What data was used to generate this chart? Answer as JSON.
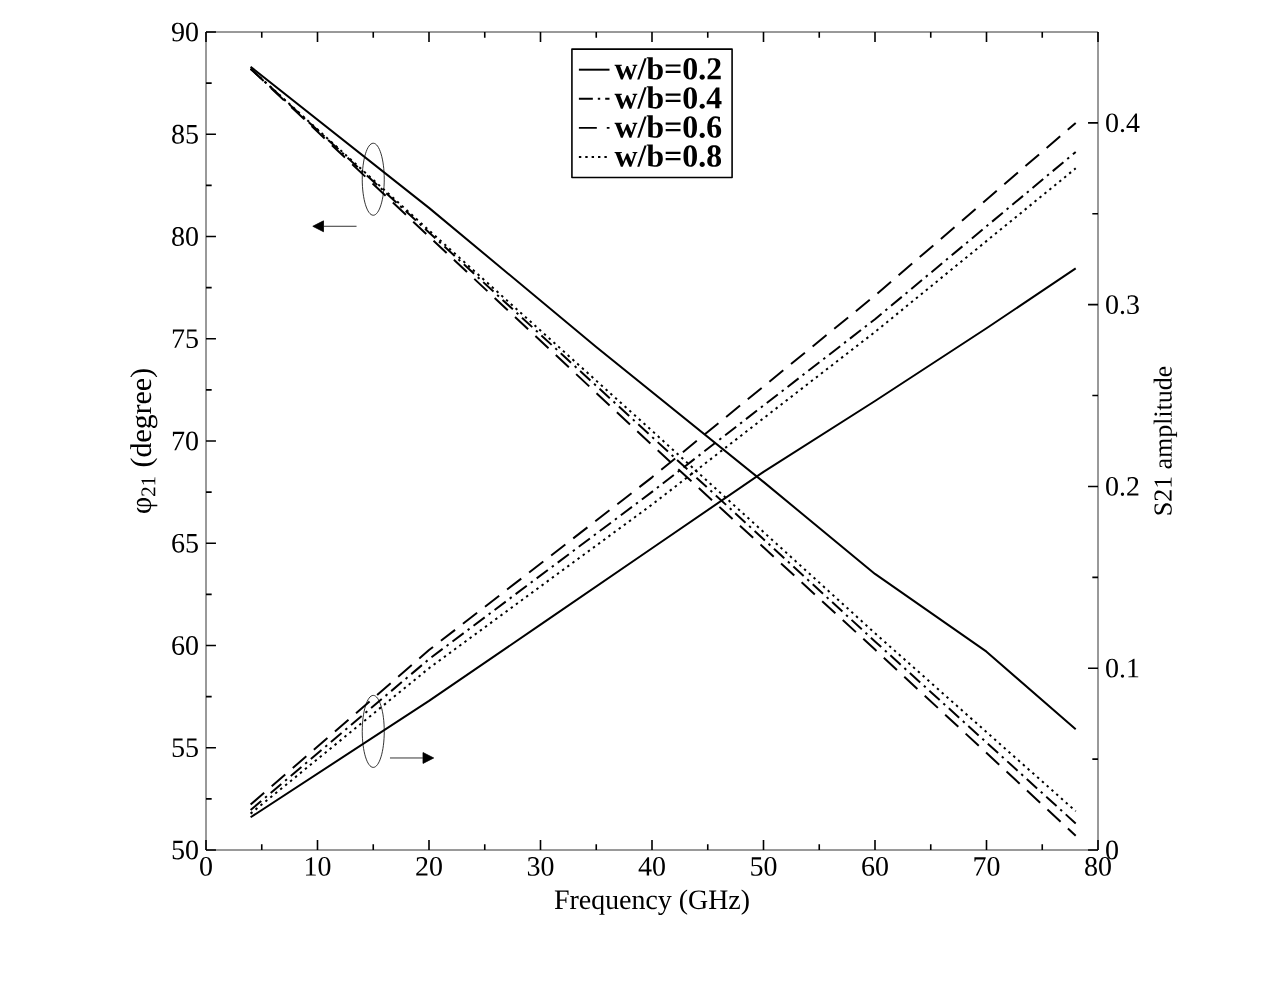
{
  "chart_data": {
    "type": "line",
    "xlabel": "Frequency (GHz)",
    "ylabel": "φ$_{21}$ (degree)",
    "y2label": "S21 amplitude",
    "xlim": [
      0,
      80
    ],
    "xticks": [
      0,
      10,
      20,
      30,
      40,
      50,
      60,
      70,
      80
    ],
    "ylim": [
      50,
      90
    ],
    "yticks": [
      50,
      55,
      60,
      65,
      70,
      75,
      80,
      85,
      90
    ],
    "y2lim": [
      0,
      0.45
    ],
    "y2ticks": [
      0,
      0.1,
      0.2,
      0.3,
      0.4
    ],
    "legend": "top",
    "grid": false,
    "marker": "none",
    "series": [
      {
        "name": "w/b=0.2",
        "color": "#000000",
        "line_style": "solid",
        "x": [
          4,
          20,
          35,
          50,
          60,
          70,
          78
        ],
        "values": [
          88.3,
          81.4,
          74.6,
          68.0,
          63.5,
          59.7,
          55.9
        ]
      },
      {
        "name": "w/b=0.4",
        "color": "#000000",
        "line_style": "dashdot",
        "x": [
          4,
          20,
          40,
          60,
          78
        ],
        "values": [
          88.2,
          80.2,
          70.2,
          60.2,
          51.3
        ]
      },
      {
        "name": "w/b=0.6",
        "color": "#000000",
        "line_style": "dashed",
        "x": [
          4,
          20,
          40,
          60,
          78
        ],
        "values": [
          88.2,
          80.0,
          69.8,
          59.8,
          50.7
        ]
      },
      {
        "name": "w/b=0.8",
        "color": "#000000",
        "line_style": "dotted",
        "x": [
          4,
          20,
          40,
          60,
          78
        ],
        "values": [
          88.2,
          80.3,
          70.5,
          60.6,
          51.9
        ]
      },
      {
        "color": "#000000",
        "line_style": "solid",
        "axis": "y2",
        "x": [
          4,
          20,
          30,
          40,
          50,
          60,
          70,
          78
        ],
        "values": [
          0.018,
          0.082,
          0.124,
          0.166,
          0.208,
          0.247,
          0.287,
          0.32
        ]
      },
      {
        "color": "#000000",
        "line_style": "dashdot",
        "axis": "y2",
        "x": [
          4,
          20,
          40,
          60,
          78
        ],
        "values": [
          0.022,
          0.105,
          0.197,
          0.292,
          0.384
        ]
      },
      {
        "color": "#000000",
        "line_style": "dashed",
        "axis": "y2",
        "x": [
          4,
          20,
          40,
          60,
          78
        ],
        "values": [
          0.025,
          0.11,
          0.205,
          0.305,
          0.4
        ]
      },
      {
        "color": "#000000",
        "line_style": "dotted",
        "axis": "y2",
        "x": [
          4,
          20,
          40,
          60,
          78
        ],
        "values": [
          0.02,
          0.1,
          0.19,
          0.285,
          0.375
        ]
      }
    ]
  }
}
